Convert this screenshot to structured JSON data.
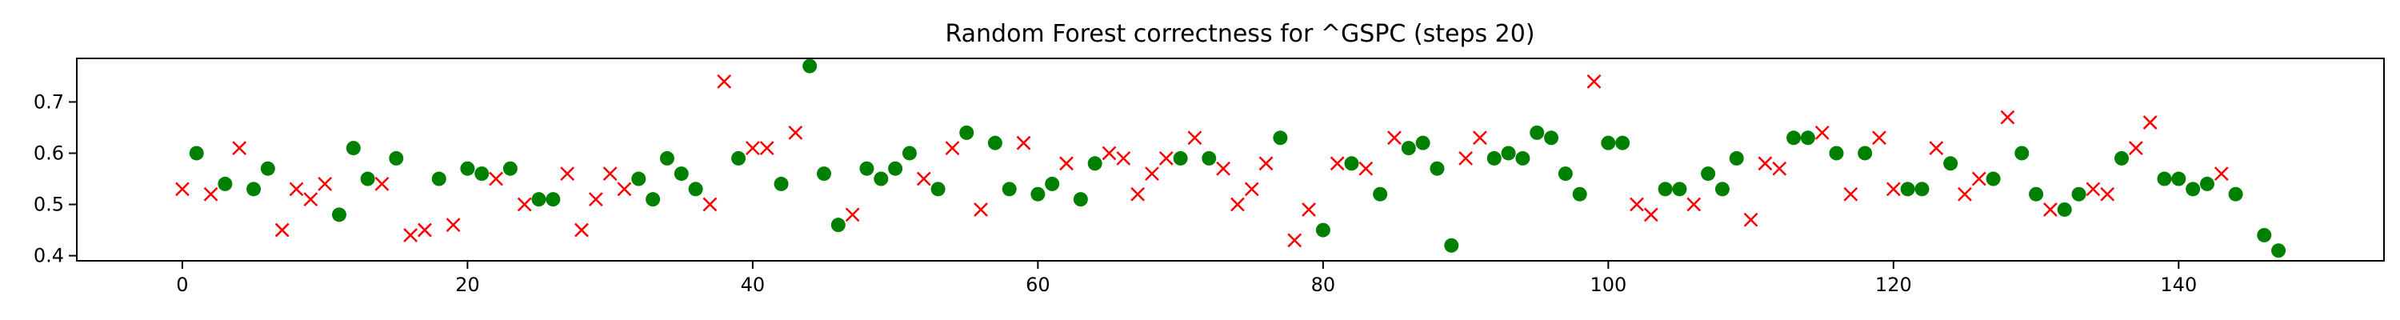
{
  "chart_data": {
    "type": "scatter",
    "title": "Random Forest correctness for ^GSPC (steps 20)",
    "xlabel": "",
    "ylabel": "",
    "xlim": [
      -7.4,
      154.4
    ],
    "ylim": [
      0.39,
      0.785
    ],
    "x_ticks": [
      0,
      20,
      40,
      60,
      80,
      100,
      120,
      140
    ],
    "y_ticks": [
      0.4,
      0.5,
      0.6,
      0.7
    ],
    "y_tick_labels": [
      "0.4",
      "0.5",
      "0.6",
      "0.7"
    ],
    "grid": false,
    "legend": "none",
    "series": [
      {
        "marker": "circle",
        "color": "#008000",
        "points": [
          [
            1,
            0.6
          ],
          [
            3,
            0.54
          ],
          [
            5,
            0.53
          ],
          [
            6,
            0.57
          ],
          [
            11,
            0.48
          ],
          [
            12,
            0.61
          ],
          [
            13,
            0.55
          ],
          [
            15,
            0.59
          ],
          [
            18,
            0.55
          ],
          [
            20,
            0.57
          ],
          [
            21,
            0.56
          ],
          [
            23,
            0.57
          ],
          [
            25,
            0.51
          ],
          [
            26,
            0.51
          ],
          [
            32,
            0.55
          ],
          [
            33,
            0.51
          ],
          [
            34,
            0.59
          ],
          [
            35,
            0.56
          ],
          [
            36,
            0.53
          ],
          [
            39,
            0.59
          ],
          [
            42,
            0.54
          ],
          [
            44,
            0.77
          ],
          [
            45,
            0.56
          ],
          [
            46,
            0.46
          ],
          [
            48,
            0.57
          ],
          [
            49,
            0.55
          ],
          [
            50,
            0.57
          ],
          [
            51,
            0.6
          ],
          [
            53,
            0.53
          ],
          [
            55,
            0.64
          ],
          [
            57,
            0.62
          ],
          [
            58,
            0.53
          ],
          [
            60,
            0.52
          ],
          [
            61,
            0.54
          ],
          [
            63,
            0.51
          ],
          [
            64,
            0.58
          ],
          [
            70,
            0.59
          ],
          [
            72,
            0.59
          ],
          [
            77,
            0.63
          ],
          [
            80,
            0.45
          ],
          [
            82,
            0.58
          ],
          [
            84,
            0.52
          ],
          [
            86,
            0.61
          ],
          [
            87,
            0.62
          ],
          [
            88,
            0.57
          ],
          [
            89,
            0.42
          ],
          [
            92,
            0.59
          ],
          [
            93,
            0.6
          ],
          [
            94,
            0.59
          ],
          [
            95,
            0.64
          ],
          [
            96,
            0.63
          ],
          [
            97,
            0.56
          ],
          [
            98,
            0.52
          ],
          [
            100,
            0.62
          ],
          [
            101,
            0.62
          ],
          [
            104,
            0.53
          ],
          [
            105,
            0.53
          ],
          [
            107,
            0.56
          ],
          [
            108,
            0.53
          ],
          [
            109,
            0.59
          ],
          [
            113,
            0.63
          ],
          [
            114,
            0.63
          ],
          [
            116,
            0.6
          ],
          [
            118,
            0.6
          ],
          [
            121,
            0.53
          ],
          [
            122,
            0.53
          ],
          [
            124,
            0.58
          ],
          [
            127,
            0.55
          ],
          [
            129,
            0.6
          ],
          [
            130,
            0.52
          ],
          [
            132,
            0.49
          ],
          [
            133,
            0.52
          ],
          [
            136,
            0.59
          ],
          [
            139,
            0.55
          ],
          [
            140,
            0.55
          ],
          [
            141,
            0.53
          ],
          [
            142,
            0.54
          ],
          [
            144,
            0.52
          ],
          [
            146,
            0.44
          ],
          [
            147,
            0.41
          ]
        ]
      },
      {
        "marker": "x",
        "color": "#ff0000",
        "points": [
          [
            0,
            0.53
          ],
          [
            2,
            0.52
          ],
          [
            4,
            0.61
          ],
          [
            7,
            0.45
          ],
          [
            8,
            0.53
          ],
          [
            9,
            0.51
          ],
          [
            10,
            0.54
          ],
          [
            14,
            0.54
          ],
          [
            16,
            0.44
          ],
          [
            17,
            0.45
          ],
          [
            19,
            0.46
          ],
          [
            22,
            0.55
          ],
          [
            24,
            0.5
          ],
          [
            27,
            0.56
          ],
          [
            28,
            0.45
          ],
          [
            29,
            0.51
          ],
          [
            30,
            0.56
          ],
          [
            31,
            0.53
          ],
          [
            37,
            0.5
          ],
          [
            38,
            0.74
          ],
          [
            40,
            0.61
          ],
          [
            41,
            0.61
          ],
          [
            43,
            0.64
          ],
          [
            47,
            0.48
          ],
          [
            52,
            0.55
          ],
          [
            54,
            0.61
          ],
          [
            56,
            0.49
          ],
          [
            59,
            0.62
          ],
          [
            62,
            0.58
          ],
          [
            65,
            0.6
          ],
          [
            66,
            0.59
          ],
          [
            67,
            0.52
          ],
          [
            68,
            0.56
          ],
          [
            69,
            0.59
          ],
          [
            71,
            0.63
          ],
          [
            73,
            0.57
          ],
          [
            74,
            0.5
          ],
          [
            75,
            0.53
          ],
          [
            76,
            0.58
          ],
          [
            78,
            0.43
          ],
          [
            79,
            0.49
          ],
          [
            81,
            0.58
          ],
          [
            83,
            0.57
          ],
          [
            85,
            0.63
          ],
          [
            90,
            0.59
          ],
          [
            91,
            0.63
          ],
          [
            99,
            0.74
          ],
          [
            102,
            0.5
          ],
          [
            103,
            0.48
          ],
          [
            106,
            0.5
          ],
          [
            110,
            0.47
          ],
          [
            111,
            0.58
          ],
          [
            112,
            0.57
          ],
          [
            115,
            0.64
          ],
          [
            117,
            0.52
          ],
          [
            119,
            0.63
          ],
          [
            120,
            0.53
          ],
          [
            123,
            0.61
          ],
          [
            125,
            0.52
          ],
          [
            126,
            0.55
          ],
          [
            128,
            0.67
          ],
          [
            131,
            0.49
          ],
          [
            134,
            0.53
          ],
          [
            135,
            0.52
          ],
          [
            137,
            0.61
          ],
          [
            138,
            0.66
          ],
          [
            143,
            0.56
          ]
        ]
      }
    ]
  }
}
